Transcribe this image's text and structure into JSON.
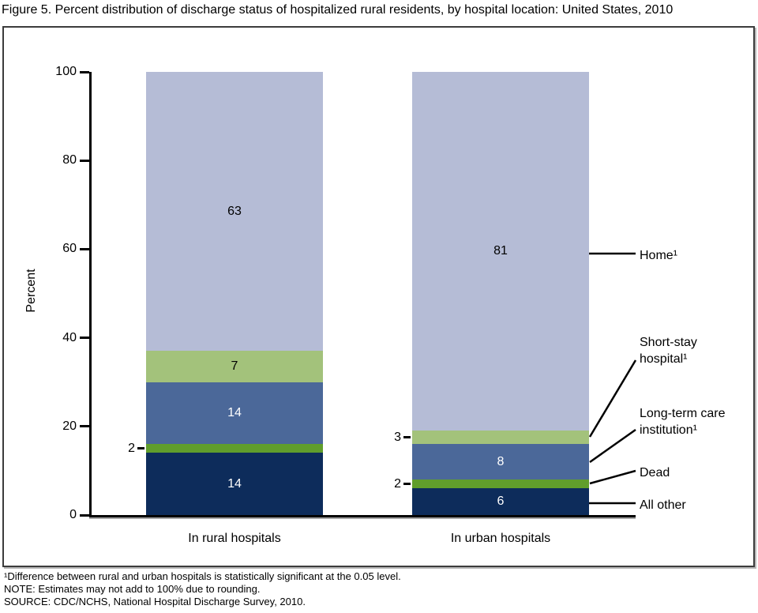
{
  "title": "Figure 5. Percent distribution of discharge status of hospitalized rural residents, by hospital location: United States, 2010",
  "chart_data": {
    "type": "bar",
    "stacked": true,
    "title": "Figure 5. Percent distribution of discharge status of hospitalized rural residents, by hospital location: United States, 2010",
    "categories": [
      "In rural hospitals",
      "In urban hospitals"
    ],
    "series": [
      {
        "name": "All other",
        "values": [
          14,
          6
        ],
        "color": "#0d2c5b",
        "text_color": "#ffffff"
      },
      {
        "name": "Dead",
        "values": [
          2,
          2
        ],
        "color": "#609e2c",
        "text_color": "#000000"
      },
      {
        "name": "Long-term care institution¹",
        "values": [
          14,
          8
        ],
        "color": "#4b6899",
        "text_color": "#ffffff"
      },
      {
        "name": "Short-stay hospital¹",
        "values": [
          7,
          3
        ],
        "color": "#a3c27b",
        "text_color": "#000000"
      },
      {
        "name": "Home¹",
        "values": [
          63,
          81
        ],
        "color": "#b5bcd6",
        "text_color": "#000000"
      }
    ],
    "xlabel": "",
    "ylabel": "Percent",
    "ylim": [
      0,
      100
    ],
    "yticks": [
      0,
      20,
      40,
      60,
      80,
      100
    ],
    "grid": false,
    "legend_position": "right-annotations"
  },
  "annotations": {
    "home": {
      "lines": [
        "Home¹"
      ]
    },
    "short_stay": {
      "lines": [
        "Short-stay",
        "hospital¹"
      ]
    },
    "long_term": {
      "lines": [
        "Long-term care",
        "institution¹"
      ]
    },
    "dead": {
      "lines": [
        "Dead"
      ]
    },
    "all_other": {
      "lines": [
        "All other"
      ]
    }
  },
  "footnotes": [
    "¹Difference between rural and urban hospitals is statistically significant at the 0.05 level.",
    "NOTE: Estimates may not add to 100% due to rounding.",
    "SOURCE: CDC/NCHS, National Hospital Discharge Survey, 2010."
  ]
}
